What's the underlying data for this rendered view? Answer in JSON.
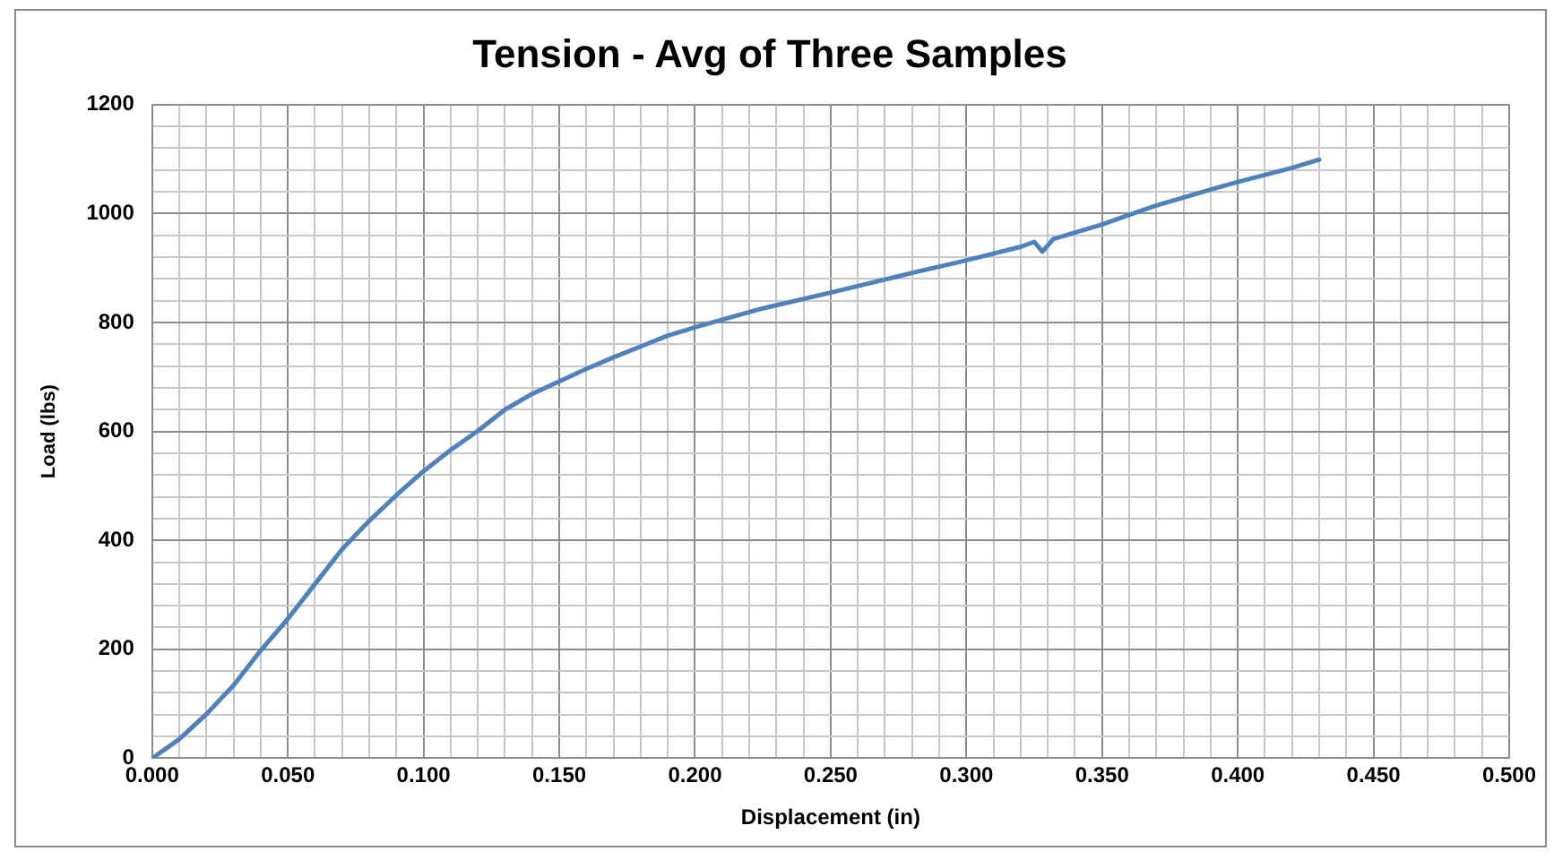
{
  "chart_data": {
    "type": "line",
    "title": "Tension - Avg of Three Samples",
    "xlabel": "Displacement (in)",
    "ylabel": "Load (lbs)",
    "x": [
      0,
      0.01,
      0.02,
      0.03,
      0.04,
      0.05,
      0.06,
      0.07,
      0.08,
      0.09,
      0.1,
      0.11,
      0.12,
      0.13,
      0.14,
      0.15,
      0.16,
      0.17,
      0.18,
      0.19,
      0.2,
      0.225,
      0.25,
      0.28,
      0.3,
      0.32,
      0.325,
      0.328,
      0.332,
      0.35,
      0.37,
      0.39,
      0.4,
      0.42,
      0.43
    ],
    "series": [
      {
        "color": "#4f81bd",
        "values": [
          0,
          35,
          81,
          134,
          198,
          256,
          320,
          384,
          436,
          483,
          527,
          566,
          601,
          640,
          669,
          692,
          715,
          736,
          756,
          776,
          791,
          826,
          855,
          891,
          914,
          939,
          948,
          930,
          953,
          980,
          1015,
          1044,
          1058,
          1084,
          1099
        ]
      }
    ],
    "xlim": [
      0,
      0.5
    ],
    "xticks": [
      {
        "value": 0,
        "label": "0.000"
      },
      {
        "value": 0.01,
        "label": null
      },
      {
        "value": 0.02,
        "label": null
      },
      {
        "value": 0.03,
        "label": null
      },
      {
        "value": 0.04,
        "label": null
      },
      {
        "value": 0.05,
        "label": "0.050"
      },
      {
        "value": 0.06,
        "label": null
      },
      {
        "value": 0.07,
        "label": null
      },
      {
        "value": 0.08,
        "label": null
      },
      {
        "value": 0.09,
        "label": null
      },
      {
        "value": 0.1,
        "label": "0.100"
      },
      {
        "value": 0.11,
        "label": null
      },
      {
        "value": 0.12,
        "label": null
      },
      {
        "value": 0.13,
        "label": null
      },
      {
        "value": 0.14,
        "label": null
      },
      {
        "value": 0.15,
        "label": "0.150"
      },
      {
        "value": 0.16,
        "label": null
      },
      {
        "value": 0.17,
        "label": null
      },
      {
        "value": 0.18,
        "label": null
      },
      {
        "value": 0.19,
        "label": null
      },
      {
        "value": 0.2,
        "label": "0.200"
      },
      {
        "value": 0.21,
        "label": null
      },
      {
        "value": 0.22,
        "label": null
      },
      {
        "value": 0.23,
        "label": null
      },
      {
        "value": 0.24,
        "label": null
      },
      {
        "value": 0.25,
        "label": "0.250"
      },
      {
        "value": 0.26,
        "label": null
      },
      {
        "value": 0.27,
        "label": null
      },
      {
        "value": 0.28,
        "label": null
      },
      {
        "value": 0.29,
        "label": null
      },
      {
        "value": 0.3,
        "label": "0.300"
      },
      {
        "value": 0.31,
        "label": null
      },
      {
        "value": 0.32,
        "label": null
      },
      {
        "value": 0.33,
        "label": null
      },
      {
        "value": 0.34,
        "label": null
      },
      {
        "value": 0.35,
        "label": "0.350"
      },
      {
        "value": 0.36,
        "label": null
      },
      {
        "value": 0.37,
        "label": null
      },
      {
        "value": 0.38,
        "label": null
      },
      {
        "value": 0.39,
        "label": null
      },
      {
        "value": 0.4,
        "label": "0.400"
      },
      {
        "value": 0.41,
        "label": null
      },
      {
        "value": 0.42,
        "label": null
      },
      {
        "value": 0.43,
        "label": null
      },
      {
        "value": 0.44,
        "label": null
      },
      {
        "value": 0.45,
        "label": "0.450"
      },
      {
        "value": 0.46,
        "label": null
      },
      {
        "value": 0.47,
        "label": null
      },
      {
        "value": 0.48,
        "label": null
      },
      {
        "value": 0.49,
        "label": null
      },
      {
        "value": 0.5,
        "label": "0.500"
      }
    ],
    "ylim": [
      0,
      1200
    ],
    "yticks": [
      0,
      {
        "value": 40,
        "label": null
      },
      {
        "value": 80,
        "label": null
      },
      {
        "value": 120,
        "label": null
      },
      {
        "value": 160,
        "label": null
      },
      200,
      {
        "value": 240,
        "label": null
      },
      {
        "value": 280,
        "label": null
      },
      {
        "value": 320,
        "label": null
      },
      {
        "value": 360,
        "label": null
      },
      400,
      {
        "value": 440,
        "label": null
      },
      {
        "value": 480,
        "label": null
      },
      {
        "value": 520,
        "label": null
      },
      {
        "value": 560,
        "label": null
      },
      600,
      {
        "value": 640,
        "label": null
      },
      {
        "value": 680,
        "label": null
      },
      {
        "value": 720,
        "label": null
      },
      {
        "value": 760,
        "label": null
      },
      800,
      {
        "value": 840,
        "label": null
      },
      {
        "value": 880,
        "label": null
      },
      {
        "value": 920,
        "label": null
      },
      {
        "value": 960,
        "label": null
      },
      1000,
      {
        "value": 1040,
        "label": null
      },
      {
        "value": 1080,
        "label": null
      },
      {
        "value": 1120,
        "label": null
      },
      {
        "value": 1160,
        "label": null
      },
      1200
    ],
    "grid": true,
    "marker": "none",
    "line_style": "solid",
    "legend": false
  }
}
